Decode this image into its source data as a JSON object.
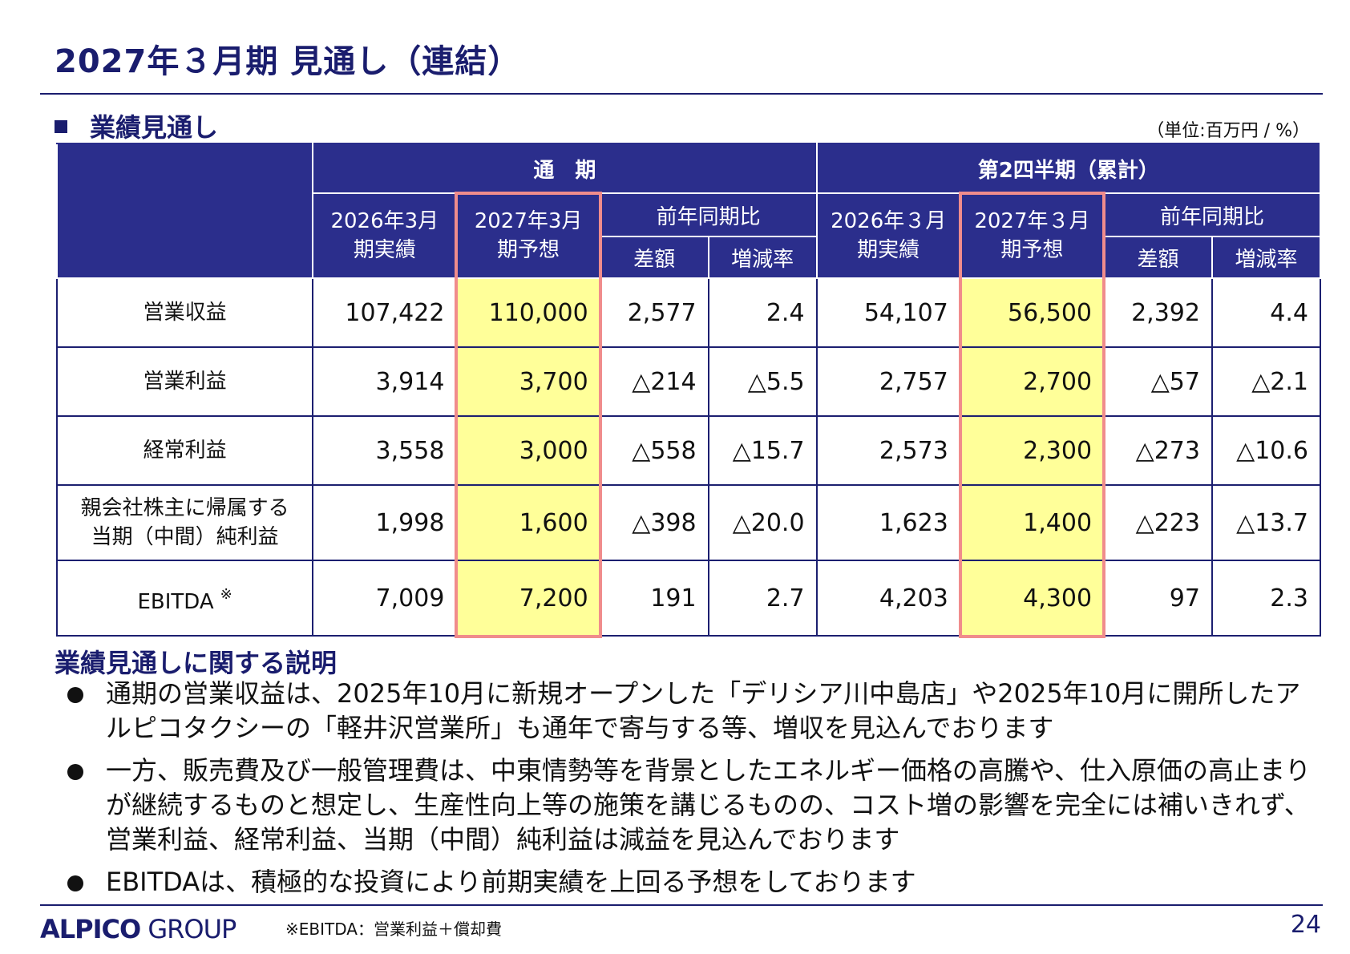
{
  "title": "2027年３月期 見通し（連結）",
  "section_heading": "業績見通し",
  "unit_note": "（単位:百万円 / %）",
  "table": {
    "group_full_year": "通　期",
    "group_h1": "第2四半期（累計）",
    "col_prev_actual_line1": "2026年3月",
    "col_prev_actual_line2": "期実績",
    "col_forecast_line1": "2027年3月",
    "col_forecast_line2": "期予想",
    "col_h1_prev_actual_line1": "2026年３月",
    "col_h1_prev_actual_line2": "期実績",
    "col_h1_forecast_line1": "2027年３月",
    "col_h1_forecast_line2": "期予想",
    "yoy_label": "前年同期比",
    "diff_label": "差額",
    "rate_label": "増減率",
    "rows": [
      {
        "label": "営業収益",
        "values": [
          "107,422",
          "110,000",
          "2,577",
          "2.4",
          "54,107",
          "56,500",
          "2,392",
          "4.4"
        ]
      },
      {
        "label": "営業利益",
        "values": [
          "3,914",
          "3,700",
          "△214",
          "△5.5",
          "2,757",
          "2,700",
          "△57",
          "△2.1"
        ]
      },
      {
        "label": "経常利益",
        "values": [
          "3,558",
          "3,000",
          "△558",
          "△15.7",
          "2,573",
          "2,300",
          "△273",
          "△10.6"
        ]
      },
      {
        "label_line1": "親会社株主に帰属する",
        "label_line2": "当期（中間）純利益",
        "values": [
          "1,998",
          "1,600",
          "△398",
          "△20.0",
          "1,623",
          "1,400",
          "△223",
          "△13.7"
        ]
      },
      {
        "label": "EBITDA",
        "label_mark": "※",
        "values": [
          "7,009",
          "7,200",
          "191",
          "2.7",
          "4,203",
          "4,300",
          "97",
          "2.3"
        ]
      }
    ]
  },
  "explanation_heading": "業績見通しに関する説明",
  "bullets": [
    "通期の営業収益は、2025年10月に新規オープンした「デリシア川中島店」や2025年10月に開所したアルピコタクシーの「軽井沢営業所」も通年で寄与する等、増収を見込んでおります",
    "一方、販売費及び一般管理費は、中東情勢等を背景としたエネルギー価格の高騰や、仕入原価の高止まりが継続するものと想定し、生産性向上等の施策を講じるものの、コスト増の影響を完全には補いきれず、営業利益、経常利益、当期（中間）純利益は減益を見込んでおります",
    "EBITDAは、積極的な投資により前期実績を上回る予想をしております"
  ],
  "footer": {
    "logo_bold": "ALPICO",
    "logo_light": "GROUP",
    "footnote": "※EBITDA：営業利益＋償却費",
    "page_number": "24"
  },
  "colors": {
    "navy": "#1a1d6e",
    "header_fill": "#2b2e8c",
    "highlight": "#ffff99",
    "highlight_frame": "#f08c8c"
  }
}
